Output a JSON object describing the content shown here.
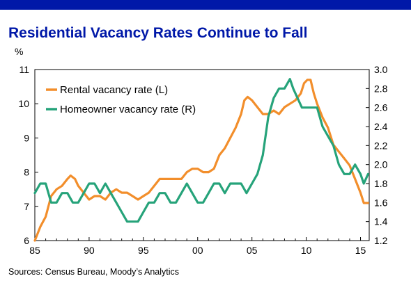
{
  "header": {
    "bar_color": "#0018a8",
    "title": "Residential Vacancy Rates Continue to Fall",
    "title_color": "#0018a8",
    "unit": "%"
  },
  "source": "Sources: Census Bureau, Moody’s Analytics",
  "chart_data": {
    "type": "line",
    "x_tick_labels": [
      "85",
      "90",
      "95",
      "00",
      "05",
      "10",
      "15"
    ],
    "x_ticks": [
      1985,
      1990,
      1995,
      2000,
      2005,
      2010,
      2015
    ],
    "xlim": [
      1985,
      2015.8
    ],
    "left_axis": {
      "ylim": [
        6,
        11
      ],
      "ticks": [
        6,
        7,
        8,
        9,
        10,
        11
      ],
      "tick_labels": [
        "6",
        "7",
        "8",
        "9",
        "10",
        "11"
      ]
    },
    "right_axis": {
      "ylim": [
        1.2,
        3.0
      ],
      "ticks": [
        1.2,
        1.4,
        1.6,
        1.8,
        2.0,
        2.2,
        2.4,
        2.6,
        2.8,
        3.0
      ],
      "tick_labels": [
        "1.2",
        "1.4",
        "1.6",
        "1.8",
        "2.0",
        "2.2",
        "2.4",
        "2.6",
        "2.8",
        "3.0"
      ]
    },
    "legend_position": "top-left",
    "series": [
      {
        "name": "Rental vacancy rate (L)",
        "axis": "left",
        "color": "#f28e2b",
        "x": [
          1985.0,
          1985.5,
          1986.0,
          1986.5,
          1987.0,
          1987.5,
          1988.0,
          1988.3,
          1988.7,
          1989.0,
          1989.5,
          1990.0,
          1990.5,
          1991.0,
          1991.5,
          1992.0,
          1992.5,
          1993.0,
          1993.5,
          1994.0,
          1994.5,
          1995.0,
          1995.5,
          1996.0,
          1996.5,
          1997.0,
          1997.5,
          1998.0,
          1998.5,
          1999.0,
          1999.5,
          2000.0,
          2000.5,
          2001.0,
          2001.5,
          2002.0,
          2002.5,
          2003.0,
          2003.5,
          2004.0,
          2004.3,
          2004.6,
          2005.0,
          2005.5,
          2006.0,
          2006.5,
          2007.0,
          2007.5,
          2008.0,
          2008.5,
          2009.0,
          2009.5,
          2009.8,
          2010.1,
          2010.4,
          2010.7,
          2011.0,
          2011.5,
          2012.0,
          2012.5,
          2013.0,
          2013.5,
          2014.0,
          2014.5,
          2015.0,
          2015.3,
          2015.7
        ],
        "values": [
          6.0,
          6.4,
          6.7,
          7.3,
          7.5,
          7.6,
          7.8,
          7.9,
          7.8,
          7.6,
          7.4,
          7.2,
          7.3,
          7.3,
          7.2,
          7.4,
          7.5,
          7.4,
          7.4,
          7.3,
          7.2,
          7.3,
          7.4,
          7.6,
          7.8,
          7.8,
          7.8,
          7.8,
          7.8,
          8.0,
          8.1,
          8.1,
          8.0,
          8.0,
          8.1,
          8.5,
          8.7,
          9.0,
          9.3,
          9.7,
          10.1,
          10.2,
          10.1,
          9.9,
          9.7,
          9.7,
          9.8,
          9.7,
          9.9,
          10.0,
          10.1,
          10.3,
          10.6,
          10.7,
          10.7,
          10.3,
          10.0,
          9.6,
          9.3,
          8.8,
          8.6,
          8.4,
          8.2,
          7.8,
          7.4,
          7.1,
          7.1
        ]
      },
      {
        "name": "Homeowner vacancy rate (R)",
        "axis": "right",
        "color": "#26a37a",
        "x": [
          1985.0,
          1985.5,
          1986.0,
          1986.5,
          1987.0,
          1987.5,
          1988.0,
          1988.5,
          1989.0,
          1989.5,
          1990.0,
          1990.5,
          1991.0,
          1991.5,
          1992.0,
          1992.5,
          1993.0,
          1993.5,
          1994.0,
          1994.5,
          1995.0,
          1995.5,
          1996.0,
          1996.5,
          1997.0,
          1997.5,
          1998.0,
          1998.5,
          1999.0,
          1999.5,
          2000.0,
          2000.5,
          2001.0,
          2001.5,
          2002.0,
          2002.5,
          2003.0,
          2003.5,
          2004.0,
          2004.5,
          2005.0,
          2005.5,
          2006.0,
          2006.5,
          2007.0,
          2007.5,
          2008.0,
          2008.5,
          2008.8,
          2009.2,
          2009.6,
          2010.0,
          2010.5,
          2011.0,
          2011.5,
          2012.0,
          2012.5,
          2013.0,
          2013.5,
          2014.0,
          2014.5,
          2015.0,
          2015.3,
          2015.7
        ],
        "values": [
          1.7,
          1.8,
          1.8,
          1.6,
          1.6,
          1.7,
          1.7,
          1.6,
          1.6,
          1.7,
          1.8,
          1.8,
          1.7,
          1.8,
          1.7,
          1.6,
          1.5,
          1.4,
          1.4,
          1.4,
          1.5,
          1.6,
          1.6,
          1.7,
          1.7,
          1.6,
          1.6,
          1.7,
          1.8,
          1.7,
          1.6,
          1.6,
          1.7,
          1.8,
          1.8,
          1.7,
          1.8,
          1.8,
          1.8,
          1.7,
          1.8,
          1.9,
          2.1,
          2.5,
          2.7,
          2.8,
          2.8,
          2.9,
          2.8,
          2.7,
          2.6,
          2.6,
          2.6,
          2.6,
          2.4,
          2.3,
          2.2,
          2.0,
          1.9,
          1.9,
          2.0,
          1.9,
          1.8,
          1.9
        ]
      }
    ]
  }
}
